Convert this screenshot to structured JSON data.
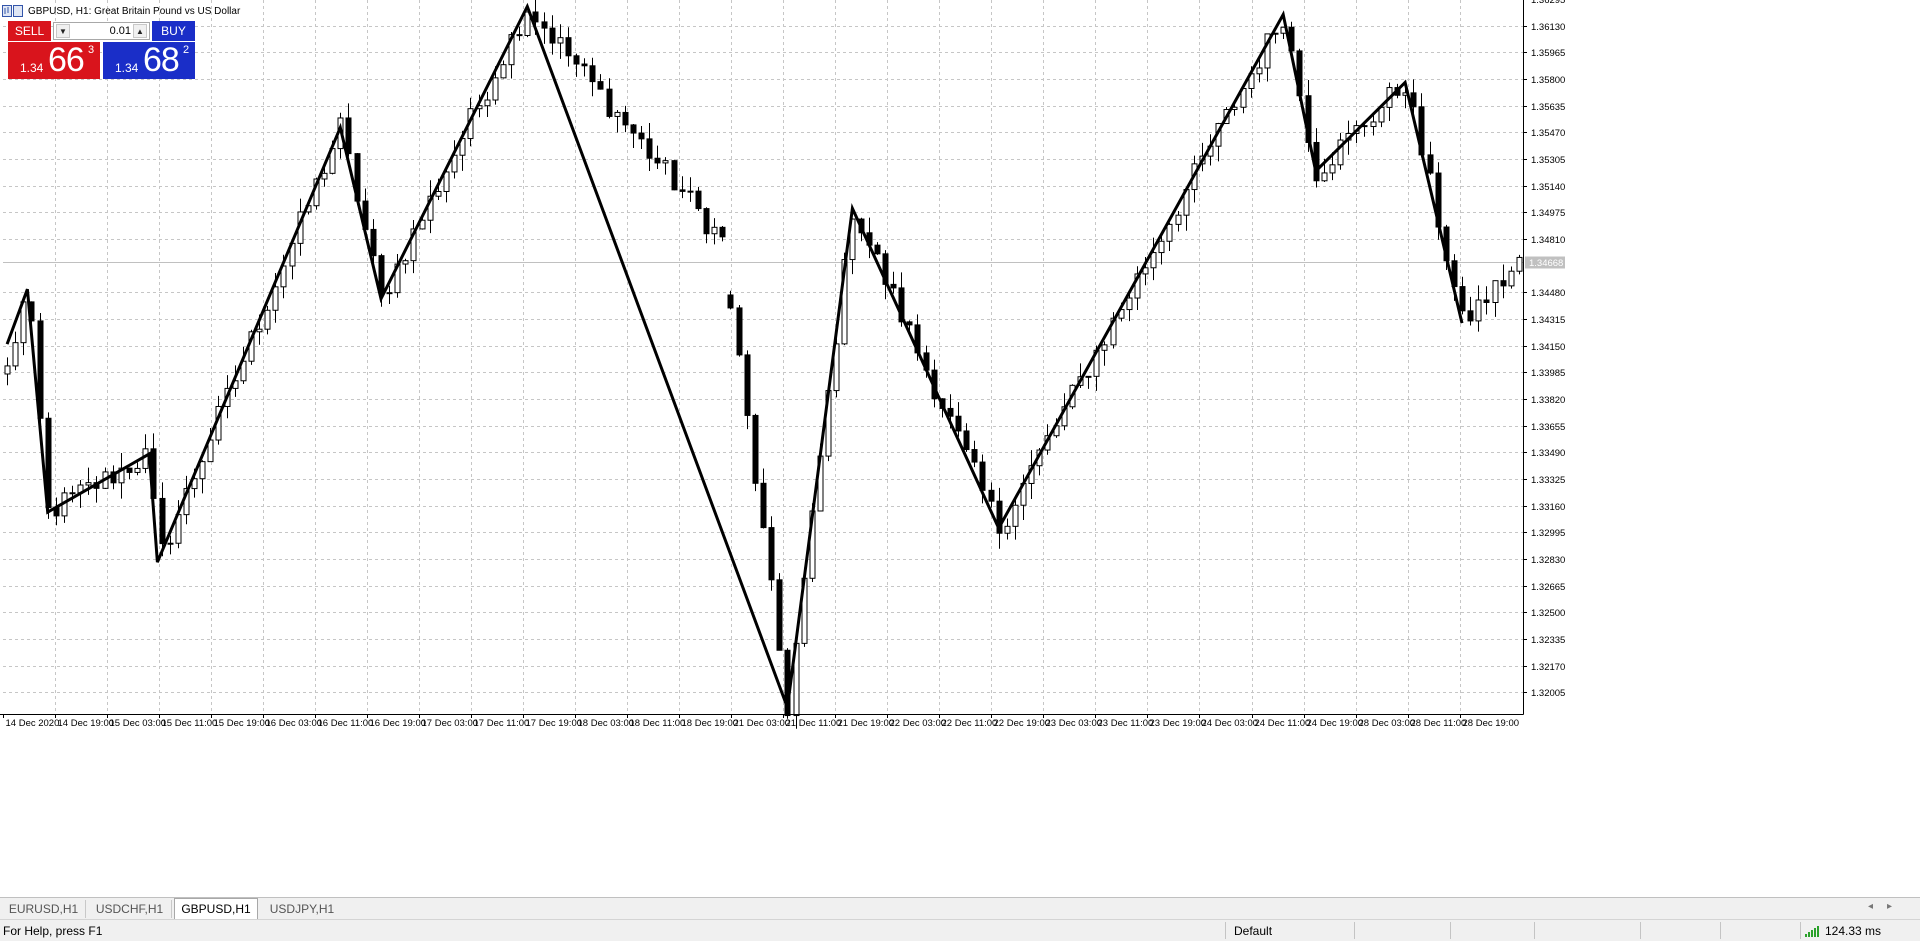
{
  "window": {
    "title": "GBPUSD, H1:  Great Britain Pound vs US Dollar",
    "icon": "chart-window-icon"
  },
  "trade_panel": {
    "sell_label": "SELL",
    "buy_label": "BUY",
    "lot": "0.01",
    "sell_price": {
      "small": "1.34",
      "big": "66",
      "sup": "3"
    },
    "buy_price": {
      "small": "1.34",
      "big": "68",
      "sup": "2"
    },
    "sell_color": "#d9141c",
    "buy_color": "#1a2ec8"
  },
  "tabs": [
    {
      "label": "EURUSD,H1",
      "active": false
    },
    {
      "label": "USDCHF,H1",
      "active": false
    },
    {
      "label": "GBPUSD,H1",
      "active": true
    },
    {
      "label": "USDJPY,H1",
      "active": false
    }
  ],
  "status": {
    "help": "For Help, press F1",
    "profile": "Default",
    "ping": "124.33 ms",
    "signal_icon": "signal-bars-icon"
  },
  "chart_data": {
    "type": "candlestick",
    "symbol": "GBPUSD",
    "timeframe": "H1",
    "ylim": [
      1.3187,
      1.3629
    ],
    "y_ticks": [
      "1.36295",
      "1.36130",
      "1.35965",
      "1.35800",
      "1.35635",
      "1.35470",
      "1.35305",
      "1.35140",
      "1.34975",
      "1.34810",
      "1.34480",
      "1.34315",
      "1.34150",
      "1.33985",
      "1.33820",
      "1.33655",
      "1.33490",
      "1.33325",
      "1.33160",
      "1.32995",
      "1.32830",
      "1.32665",
      "1.32500",
      "1.32335",
      "1.32170",
      "1.32005"
    ],
    "current_price_label": "1.34668",
    "current_price": 1.34668,
    "x_ticks": [
      "14 Dec 2020",
      "14 Dec 19:00",
      "15 Dec 03:00",
      "15 Dec 11:00",
      "15 Dec 19:00",
      "16 Dec 03:00",
      "16 Dec 11:00",
      "16 Dec 19:00",
      "17 Dec 03:00",
      "17 Dec 11:00",
      "17 Dec 19:00",
      "18 Dec 03:00",
      "18 Dec 11:00",
      "18 Dec 19:00",
      "21 Dec 03:00",
      "21 Dec 11:00",
      "21 Dec 19:00",
      "22 Dec 03:00",
      "22 Dec 11:00",
      "22 Dec 19:00",
      "23 Dec 03:00",
      "23 Dec 11:00",
      "23 Dec 19:00",
      "24 Dec 03:00",
      "24 Dec 11:00",
      "24 Dec 19:00",
      "28 Dec 03:00",
      "28 Dec 11:00",
      "28 Dec 19:00"
    ],
    "grid": true,
    "zigzag": [
      [
        0,
        1.3416
      ],
      [
        2.5,
        1.345
      ],
      [
        5,
        1.3312
      ],
      [
        17.5,
        1.3348
      ],
      [
        18.5,
        1.3281
      ],
      [
        41,
        1.355
      ],
      [
        46,
        1.3444
      ],
      [
        64,
        1.3625
      ],
      [
        96,
        1.3191
      ],
      [
        104,
        1.35
      ],
      [
        122,
        1.3302
      ],
      [
        157,
        1.362
      ],
      [
        161,
        1.3523
      ],
      [
        172,
        1.3578
      ],
      [
        179,
        1.3429
      ]
    ],
    "gap_after_index": 88,
    "anchors": [
      [
        0,
        1.34
      ],
      [
        2.5,
        1.345
      ],
      [
        5,
        1.3312
      ],
      [
        17.5,
        1.3348
      ],
      [
        18.5,
        1.3281
      ],
      [
        41,
        1.355
      ],
      [
        46,
        1.3444
      ],
      [
        64,
        1.3625
      ],
      [
        88,
        1.348
      ],
      [
        89,
        1.344
      ],
      [
        96,
        1.3191
      ],
      [
        104,
        1.35
      ],
      [
        122,
        1.3302
      ],
      [
        157,
        1.362
      ],
      [
        161,
        1.3523
      ],
      [
        172,
        1.3578
      ],
      [
        179,
        1.3429
      ],
      [
        186,
        1.3466
      ]
    ],
    "candle_count": 187,
    "seed": 12345
  }
}
